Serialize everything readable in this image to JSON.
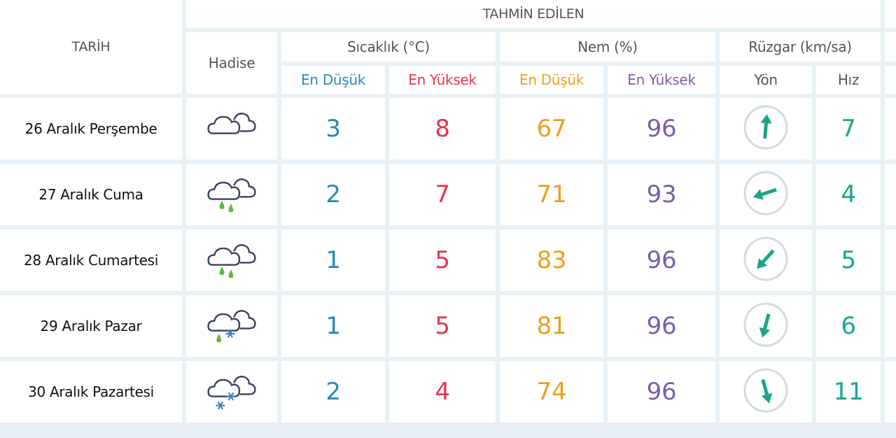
{
  "header": {
    "date_label": "TARİH",
    "forecast_label": "TAHMİN EDİLEN",
    "event_label": "Hadise",
    "temp_label": "Sıcaklık (°C)",
    "humidity_label": "Nem (%)",
    "wind_label": "Rüzgar (km/sa)",
    "temp_low": "En Düşük",
    "temp_high": "En Yüksek",
    "hum_low": "En Düşük",
    "hum_high": "En Yüksek",
    "wind_dir": "Yön",
    "wind_speed": "Hız"
  },
  "colors": {
    "temp_low": "#2a8ab8",
    "temp_high": "#e8334f",
    "hum_low": "#e8a21c",
    "hum_high": "#7b5ea8",
    "wind": "#1aa58c",
    "grid": "#e8f1f6"
  },
  "rows": [
    {
      "date": "26 Aralık Perşembe",
      "icon": "cloudy-icon",
      "temp_low": "3",
      "temp_high": "8",
      "hum_low": "67",
      "hum_high": "96",
      "wind_dir_deg": 5,
      "wind_speed": "7"
    },
    {
      "date": "27 Aralık Cuma",
      "icon": "cloud-rain-icon",
      "temp_low": "2",
      "temp_high": "7",
      "hum_low": "71",
      "hum_high": "93",
      "wind_dir_deg": 252,
      "wind_speed": "4"
    },
    {
      "date": "28 Aralık Cumartesi",
      "icon": "cloud-rain-icon",
      "temp_low": "1",
      "temp_high": "5",
      "hum_low": "83",
      "hum_high": "96",
      "wind_dir_deg": 222,
      "wind_speed": "5"
    },
    {
      "date": "29 Aralık Pazar",
      "icon": "cloud-sleet-icon",
      "temp_low": "1",
      "temp_high": "5",
      "hum_low": "81",
      "hum_high": "96",
      "wind_dir_deg": 195,
      "wind_speed": "6"
    },
    {
      "date": "30 Aralık Pazartesi",
      "icon": "cloud-snow-icon",
      "temp_low": "2",
      "temp_high": "4",
      "hum_low": "74",
      "hum_high": "96",
      "wind_dir_deg": 165,
      "wind_speed": "11"
    }
  ]
}
